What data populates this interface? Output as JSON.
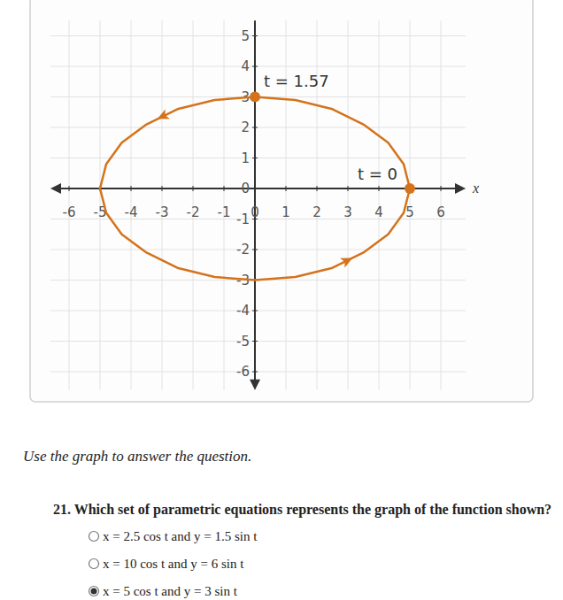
{
  "chart_data": {
    "type": "line",
    "x": [
      5,
      4.8,
      4.3,
      3.5,
      2.5,
      1.3,
      0,
      -1.3,
      -2.5,
      -3.5,
      -4.3,
      -4.8,
      -5,
      -4.8,
      -4.3,
      -3.5,
      -2.5,
      -1.3,
      0,
      1.3,
      2.5,
      3.5,
      4.3,
      4.8,
      5
    ],
    "values": [
      0,
      0.8,
      1.5,
      2.1,
      2.6,
      2.9,
      3,
      2.9,
      2.6,
      2.1,
      1.5,
      0.8,
      0,
      -0.8,
      -1.5,
      -2.1,
      -2.6,
      -2.9,
      -3,
      -2.9,
      -2.6,
      -2.1,
      -1.5,
      -0.8,
      0
    ],
    "color": "#d4731c",
    "xlim": [
      -6.6,
      6.8
    ],
    "xticks": [
      -6,
      -5,
      -4,
      -3,
      -2,
      -1,
      0,
      1,
      2,
      3,
      4,
      5,
      6
    ],
    "ylim": [
      -6.6,
      5.5
    ],
    "yticks": [
      -6,
      -5,
      -4,
      -3,
      -2,
      -1,
      0,
      1,
      2,
      3,
      4,
      5
    ],
    "xlabel": "x",
    "grid": true,
    "annotations": [
      {
        "text": "t = 1.57",
        "x": 0,
        "y": 3
      },
      {
        "text": "t = 0",
        "x": 5,
        "y": 0
      }
    ]
  },
  "page": {
    "instruction": "Use the graph to answer the question.",
    "question": "21. Which set of parametric equations represents the graph of the function shown?",
    "options": [
      "x = 2.5 cos t and y = 1.5 sin t",
      "x = 10 cos t and y = 6 sin t",
      "x = 5 cos t and y = 3 sin t"
    ],
    "selected": 2
  }
}
